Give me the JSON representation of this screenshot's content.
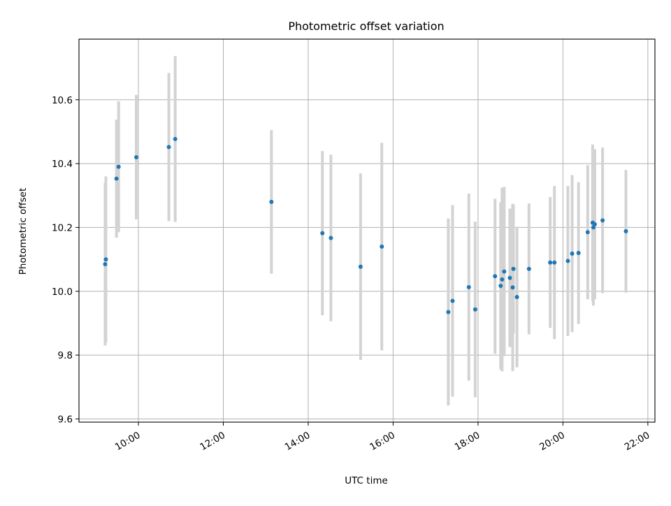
{
  "chart_data": {
    "type": "scatter",
    "title": "Photometric offset variation",
    "xlabel": "UTC time",
    "ylabel": "Photometric offset",
    "x_tick_labels": [
      "10:00",
      "12:00",
      "14:00",
      "16:00",
      "18:00",
      "20:00",
      "22:00"
    ],
    "y_tick_labels": [
      "9.6",
      "9.8",
      "10.0",
      "10.2",
      "10.4",
      "10.6"
    ],
    "xlim": [
      "08:36",
      "22:10"
    ],
    "ylim": [
      9.59,
      10.79
    ],
    "grid": true,
    "colors": {
      "point": "#1f77b4",
      "errorbar": "#d3d3d3",
      "grid": "#b0b0b0"
    },
    "points": [
      {
        "x": "09:13",
        "y": 10.085,
        "err": 0.255
      },
      {
        "x": "09:14",
        "y": 10.1,
        "err": 0.26
      },
      {
        "x": "09:29",
        "y": 10.353,
        "err": 0.185
      },
      {
        "x": "09:32",
        "y": 10.39,
        "err": 0.205
      },
      {
        "x": "09:57",
        "y": 10.42,
        "err": 0.195
      },
      {
        "x": "10:43",
        "y": 10.452,
        "err": 0.232
      },
      {
        "x": "10:52",
        "y": 10.477,
        "err": 0.26
      },
      {
        "x": "13:08",
        "y": 10.28,
        "err": 0.225
      },
      {
        "x": "14:20",
        "y": 10.182,
        "err": 0.257
      },
      {
        "x": "14:32",
        "y": 10.167,
        "err": 0.261
      },
      {
        "x": "15:14",
        "y": 10.077,
        "err": 0.292
      },
      {
        "x": "15:44",
        "y": 10.14,
        "err": 0.325
      },
      {
        "x": "17:18",
        "y": 9.935,
        "err": 0.293
      },
      {
        "x": "17:24",
        "y": 9.97,
        "err": 0.3
      },
      {
        "x": "17:47",
        "y": 10.013,
        "err": 0.293
      },
      {
        "x": "17:56",
        "y": 9.943,
        "err": 0.275
      },
      {
        "x": "18:24",
        "y": 10.047,
        "err": 0.243
      },
      {
        "x": "18:32",
        "y": 10.017,
        "err": 0.262
      },
      {
        "x": "18:34",
        "y": 10.037,
        "err": 0.288
      },
      {
        "x": "18:37",
        "y": 10.062,
        "err": 0.265
      },
      {
        "x": "18:45",
        "y": 10.042,
        "err": 0.217
      },
      {
        "x": "18:49",
        "y": 10.012,
        "err": 0.262
      },
      {
        "x": "18:50",
        "y": 10.07,
        "err": 0.202
      },
      {
        "x": "18:55",
        "y": 9.982,
        "err": 0.22
      },
      {
        "x": "19:12",
        "y": 10.07,
        "err": 0.205
      },
      {
        "x": "19:42",
        "y": 10.09,
        "err": 0.205
      },
      {
        "x": "19:48",
        "y": 10.09,
        "err": 0.24
      },
      {
        "x": "20:07",
        "y": 10.095,
        "err": 0.235
      },
      {
        "x": "20:13",
        "y": 10.118,
        "err": 0.246
      },
      {
        "x": "20:22",
        "y": 10.12,
        "err": 0.222
      },
      {
        "x": "20:35",
        "y": 10.185,
        "err": 0.21
      },
      {
        "x": "20:42",
        "y": 10.215,
        "err": 0.245
      },
      {
        "x": "20:43",
        "y": 10.2,
        "err": 0.245
      },
      {
        "x": "20:45",
        "y": 10.21,
        "err": 0.235
      },
      {
        "x": "20:56",
        "y": 10.222,
        "err": 0.228
      },
      {
        "x": "21:29",
        "y": 10.188,
        "err": 0.192
      }
    ]
  }
}
